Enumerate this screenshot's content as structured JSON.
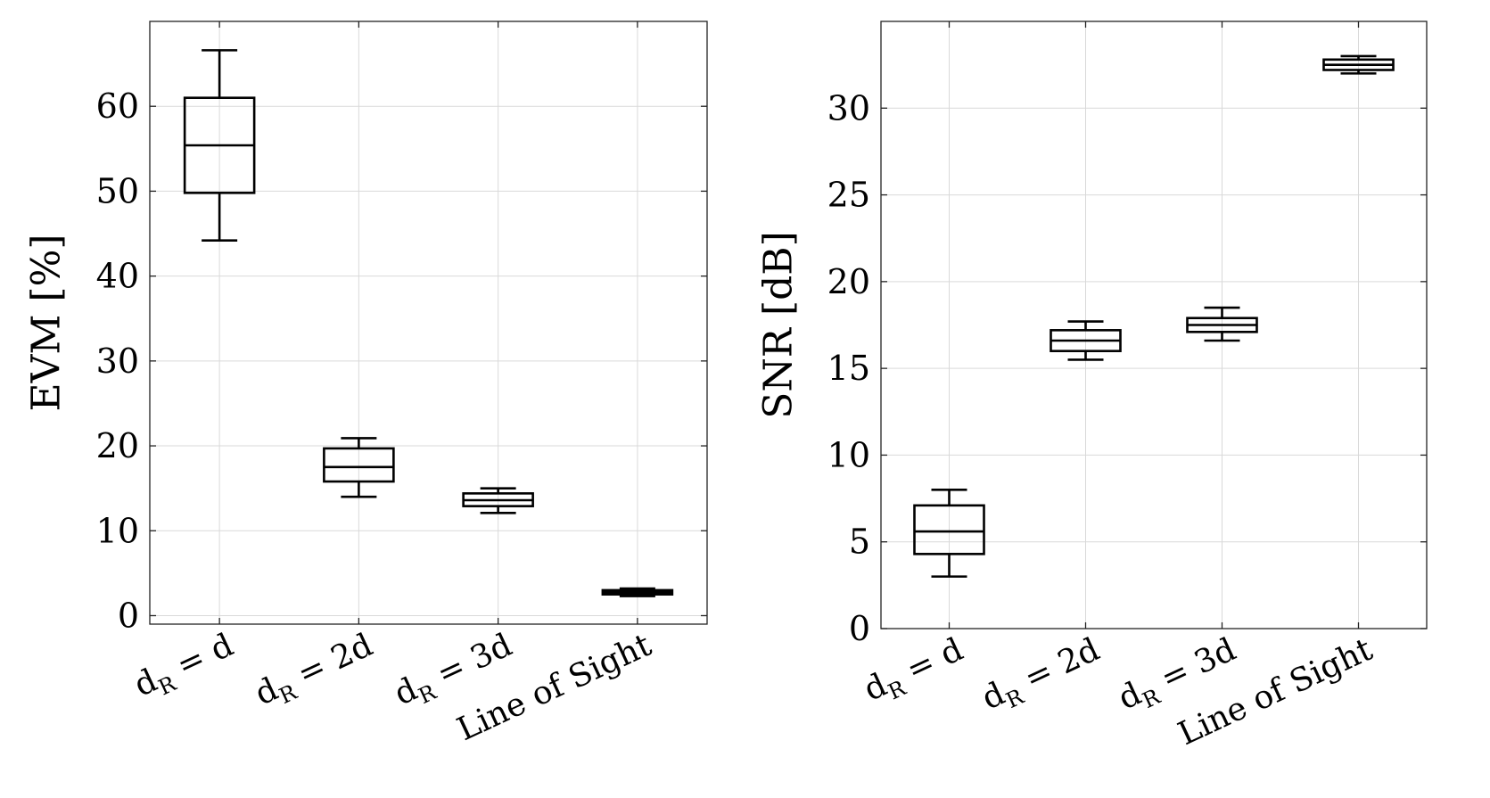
{
  "chart_data": [
    {
      "type": "box",
      "ylabel": "EVM [%]",
      "ylim": [
        -1,
        70
      ],
      "yticks": [
        0,
        10,
        20,
        30,
        40,
        50,
        60
      ],
      "categories": [
        {
          "base": "d",
          "sub": "R",
          "rhs": " = d"
        },
        {
          "base": "d",
          "sub": "R",
          "rhs": " = 2d"
        },
        {
          "base": "d",
          "sub": "R",
          "rhs": " = 3d"
        },
        {
          "base": "Line of Sight",
          "sub": "",
          "rhs": ""
        }
      ],
      "boxes": [
        {
          "min": 44.2,
          "q1": 49.8,
          "median": 55.4,
          "q3": 61.0,
          "max": 66.6
        },
        {
          "min": 14.0,
          "q1": 15.8,
          "median": 17.5,
          "q3": 19.7,
          "max": 20.9
        },
        {
          "min": 12.1,
          "q1": 12.9,
          "median": 13.6,
          "q3": 14.4,
          "max": 15.0
        },
        {
          "min": 2.3,
          "q1": 2.5,
          "median": 2.75,
          "q3": 3.0,
          "max": 3.2
        }
      ],
      "grid": true
    },
    {
      "type": "box",
      "ylabel": "SNR [dB]",
      "ylim": [
        0,
        35
      ],
      "yticks": [
        0,
        5,
        10,
        15,
        20,
        25,
        30
      ],
      "categories": [
        {
          "base": "d",
          "sub": "R",
          "rhs": " = d"
        },
        {
          "base": "d",
          "sub": "R",
          "rhs": " = 2d"
        },
        {
          "base": "d",
          "sub": "R",
          "rhs": " = 3d"
        },
        {
          "base": "Line of Sight",
          "sub": "",
          "rhs": ""
        }
      ],
      "boxes": [
        {
          "min": 3.0,
          "q1": 4.3,
          "median": 5.6,
          "q3": 7.1,
          "max": 8.0
        },
        {
          "min": 15.5,
          "q1": 16.0,
          "median": 16.6,
          "q3": 17.2,
          "max": 17.7
        },
        {
          "min": 16.6,
          "q1": 17.1,
          "median": 17.5,
          "q3": 17.9,
          "max": 18.5
        },
        {
          "min": 32.0,
          "q1": 32.2,
          "median": 32.5,
          "q3": 32.8,
          "max": 33.0
        }
      ],
      "grid": true
    }
  ]
}
